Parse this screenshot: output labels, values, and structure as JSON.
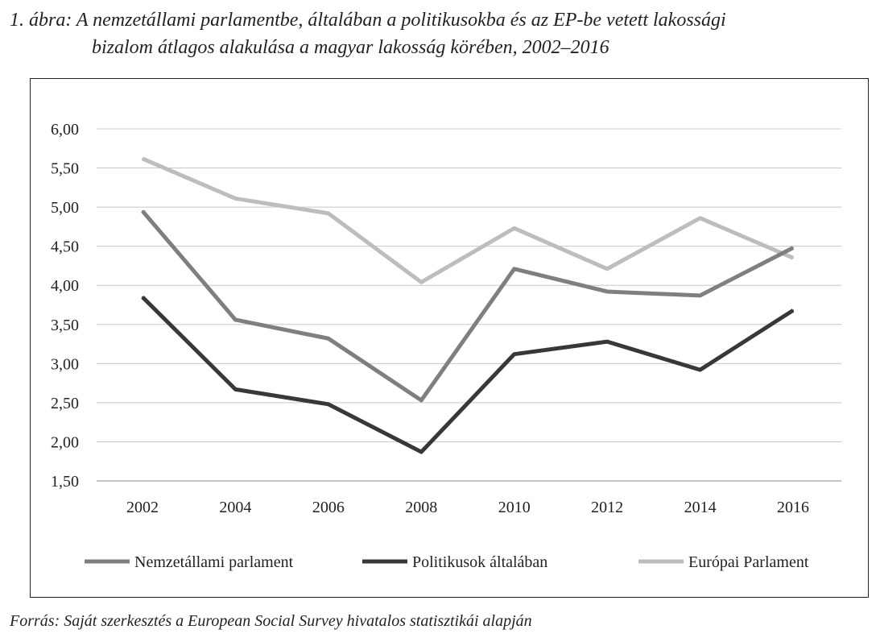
{
  "title_line1": "1. ábra: A nemzetállami parlamentbe, általában a politikusokba és az EP-be vetett lakossági",
  "title_line2": "bizalom átlagos alakulása a magyar lakosság körében, 2002–2016",
  "source": "Forrás: Saját szerkesztés a European Social Survey hivatalos statisztikái alapján",
  "chart_data": {
    "type": "line",
    "x": [
      "2002",
      "2004",
      "2006",
      "2008",
      "2010",
      "2012",
      "2014",
      "2016"
    ],
    "yticks": [
      "6,00",
      "5,50",
      "5,00",
      "4,50",
      "4,00",
      "3,50",
      "3,00",
      "2,50",
      "2,00",
      "1,50"
    ],
    "ylim": [
      1.5,
      6.0
    ],
    "grid": true,
    "legend_placement": "bottom",
    "series": [
      {
        "name": "Nemzetállami parlament",
        "color": "#7f7f81",
        "values": [
          4.95,
          3.56,
          3.32,
          2.53,
          4.21,
          3.92,
          3.87,
          4.48
        ]
      },
      {
        "name": "Politikusok általában",
        "color": "#383838",
        "values": [
          3.85,
          2.67,
          2.48,
          1.87,
          3.12,
          3.28,
          2.92,
          3.68
        ]
      },
      {
        "name": "Európai Parlament",
        "color": "#bdbdbd",
        "values": [
          5.62,
          5.11,
          4.92,
          4.04,
          4.73,
          4.21,
          4.86,
          4.35
        ]
      }
    ]
  }
}
